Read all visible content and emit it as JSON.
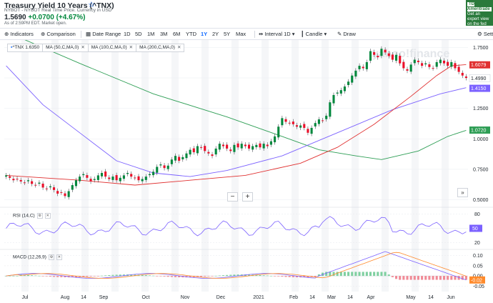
{
  "header": {
    "title": "Treasury Yield 10 Years (^TNX)",
    "subtitle": "NYBOT - NYBOT Real Time Price. Currency in USD",
    "price": "1.5690",
    "change": "+0.0700 (+4.67%)",
    "as_of": "As of 2:59PM EDT. Market open."
  },
  "ad": {
    "logo": "TD Ameritrade",
    "text": "Get an expert view on the fed moves"
  },
  "toolbar": {
    "indicators": "Indicators",
    "comparison": "Comparison",
    "date_range": "Date Range",
    "ranges": [
      "1D",
      "5D",
      "1M",
      "3M",
      "6M",
      "YTD",
      "1Y",
      "2Y",
      "5Y",
      "Max"
    ],
    "active_range": "1Y",
    "interval": "Interval",
    "interval_value": "1D",
    "chart_type": "Candle",
    "draw": "Draw",
    "settings": "Setti"
  },
  "legend": [
    {
      "label": "^TNX",
      "value": "1.6350"
    },
    {
      "label": "MA (50,C,MA,0)"
    },
    {
      "label": "MA (100,C,MA,0)"
    },
    {
      "label": "MA (200,C,MA,0)"
    }
  ],
  "colors": {
    "up": "#00873c",
    "down": "#eb0f29",
    "ma50": "#e03030",
    "ma100": "#7b61ff",
    "ma200": "#2e9e55",
    "rsi": "#7b61ff",
    "macd": "#7b61ff",
    "signal": "#ff8a2b",
    "accent": "#0f69ff"
  },
  "watermark": "yahoo!finance",
  "chart_data": {
    "type": "candlestick",
    "ylim": [
      0.45,
      1.8
    ],
    "yticks": [
      "1.7500",
      "1.5000",
      "1.2500",
      "1.0000",
      "0.7500",
      "0.5000"
    ],
    "ytick_values": [
      1.75,
      1.5,
      1.25,
      1.0,
      0.75,
      0.5
    ],
    "xticks": [
      "Jul",
      "Aug",
      "14",
      "Sep",
      "Oct",
      "Nov",
      "Dec",
      "2021",
      "Feb",
      "14",
      "Mar",
      "14",
      "Apr",
      "May",
      "14",
      "Jun"
    ],
    "price_tags": [
      {
        "value": "1.6079",
        "level": 1.6079,
        "color": "#e03030"
      },
      {
        "value": "1.4990",
        "level": 1.499,
        "color": "#ffffff"
      },
      {
        "value": "1.4150",
        "level": 1.415,
        "color": "#7b61ff"
      },
      {
        "value": "1.0720",
        "level": 1.072,
        "color": "#2e9e55"
      }
    ],
    "closes": [
      0.7,
      0.68,
      0.66,
      0.67,
      0.65,
      0.64,
      0.66,
      0.63,
      0.62,
      0.64,
      0.6,
      0.59,
      0.61,
      0.58,
      0.55,
      0.56,
      0.53,
      0.57,
      0.62,
      0.66,
      0.69,
      0.71,
      0.68,
      0.65,
      0.67,
      0.7,
      0.72,
      0.69,
      0.67,
      0.69,
      0.66,
      0.68,
      0.7,
      0.72,
      0.69,
      0.68,
      0.66,
      0.67,
      0.69,
      0.71,
      0.73,
      0.77,
      0.79,
      0.76,
      0.78,
      0.83,
      0.86,
      0.82,
      0.85,
      0.88,
      0.91,
      0.89,
      0.94,
      0.93,
      0.9,
      0.88,
      0.86,
      0.92,
      0.96,
      0.94,
      0.92,
      0.9,
      0.95,
      0.93,
      0.96,
      0.94,
      0.92,
      0.94,
      0.95,
      0.93,
      0.96,
      0.94,
      0.98,
      1.02,
      1.1,
      1.17,
      1.14,
      1.13,
      1.12,
      1.1,
      1.11,
      1.09,
      1.05,
      1.09,
      1.13,
      1.16,
      1.15,
      1.19,
      1.3,
      1.36,
      1.38,
      1.4,
      1.43,
      1.47,
      1.52,
      1.56,
      1.6,
      1.58,
      1.63,
      1.72,
      1.69,
      1.67,
      1.74,
      1.71,
      1.68,
      1.65,
      1.69,
      1.62,
      1.58,
      1.56,
      1.61,
      1.65,
      1.63,
      1.6,
      1.62,
      1.59,
      1.58,
      1.63,
      1.65,
      1.62,
      1.6,
      1.63,
      1.58,
      1.55,
      1.52,
      1.5
    ],
    "rsi": {
      "label": "RSI (14,C)",
      "yticks": [
        "80",
        "50",
        "20"
      ],
      "ytick_values": [
        80,
        50,
        20
      ],
      "last": "50"
    },
    "macd": {
      "label": "MACD (12,26,9)",
      "yticks": [
        "0.10",
        "0.05",
        "-0.05"
      ],
      "ytick_values": [
        0.1,
        0.05,
        -0.05
      ],
      "last": "-0.02",
      "zero": "0.00"
    }
  }
}
